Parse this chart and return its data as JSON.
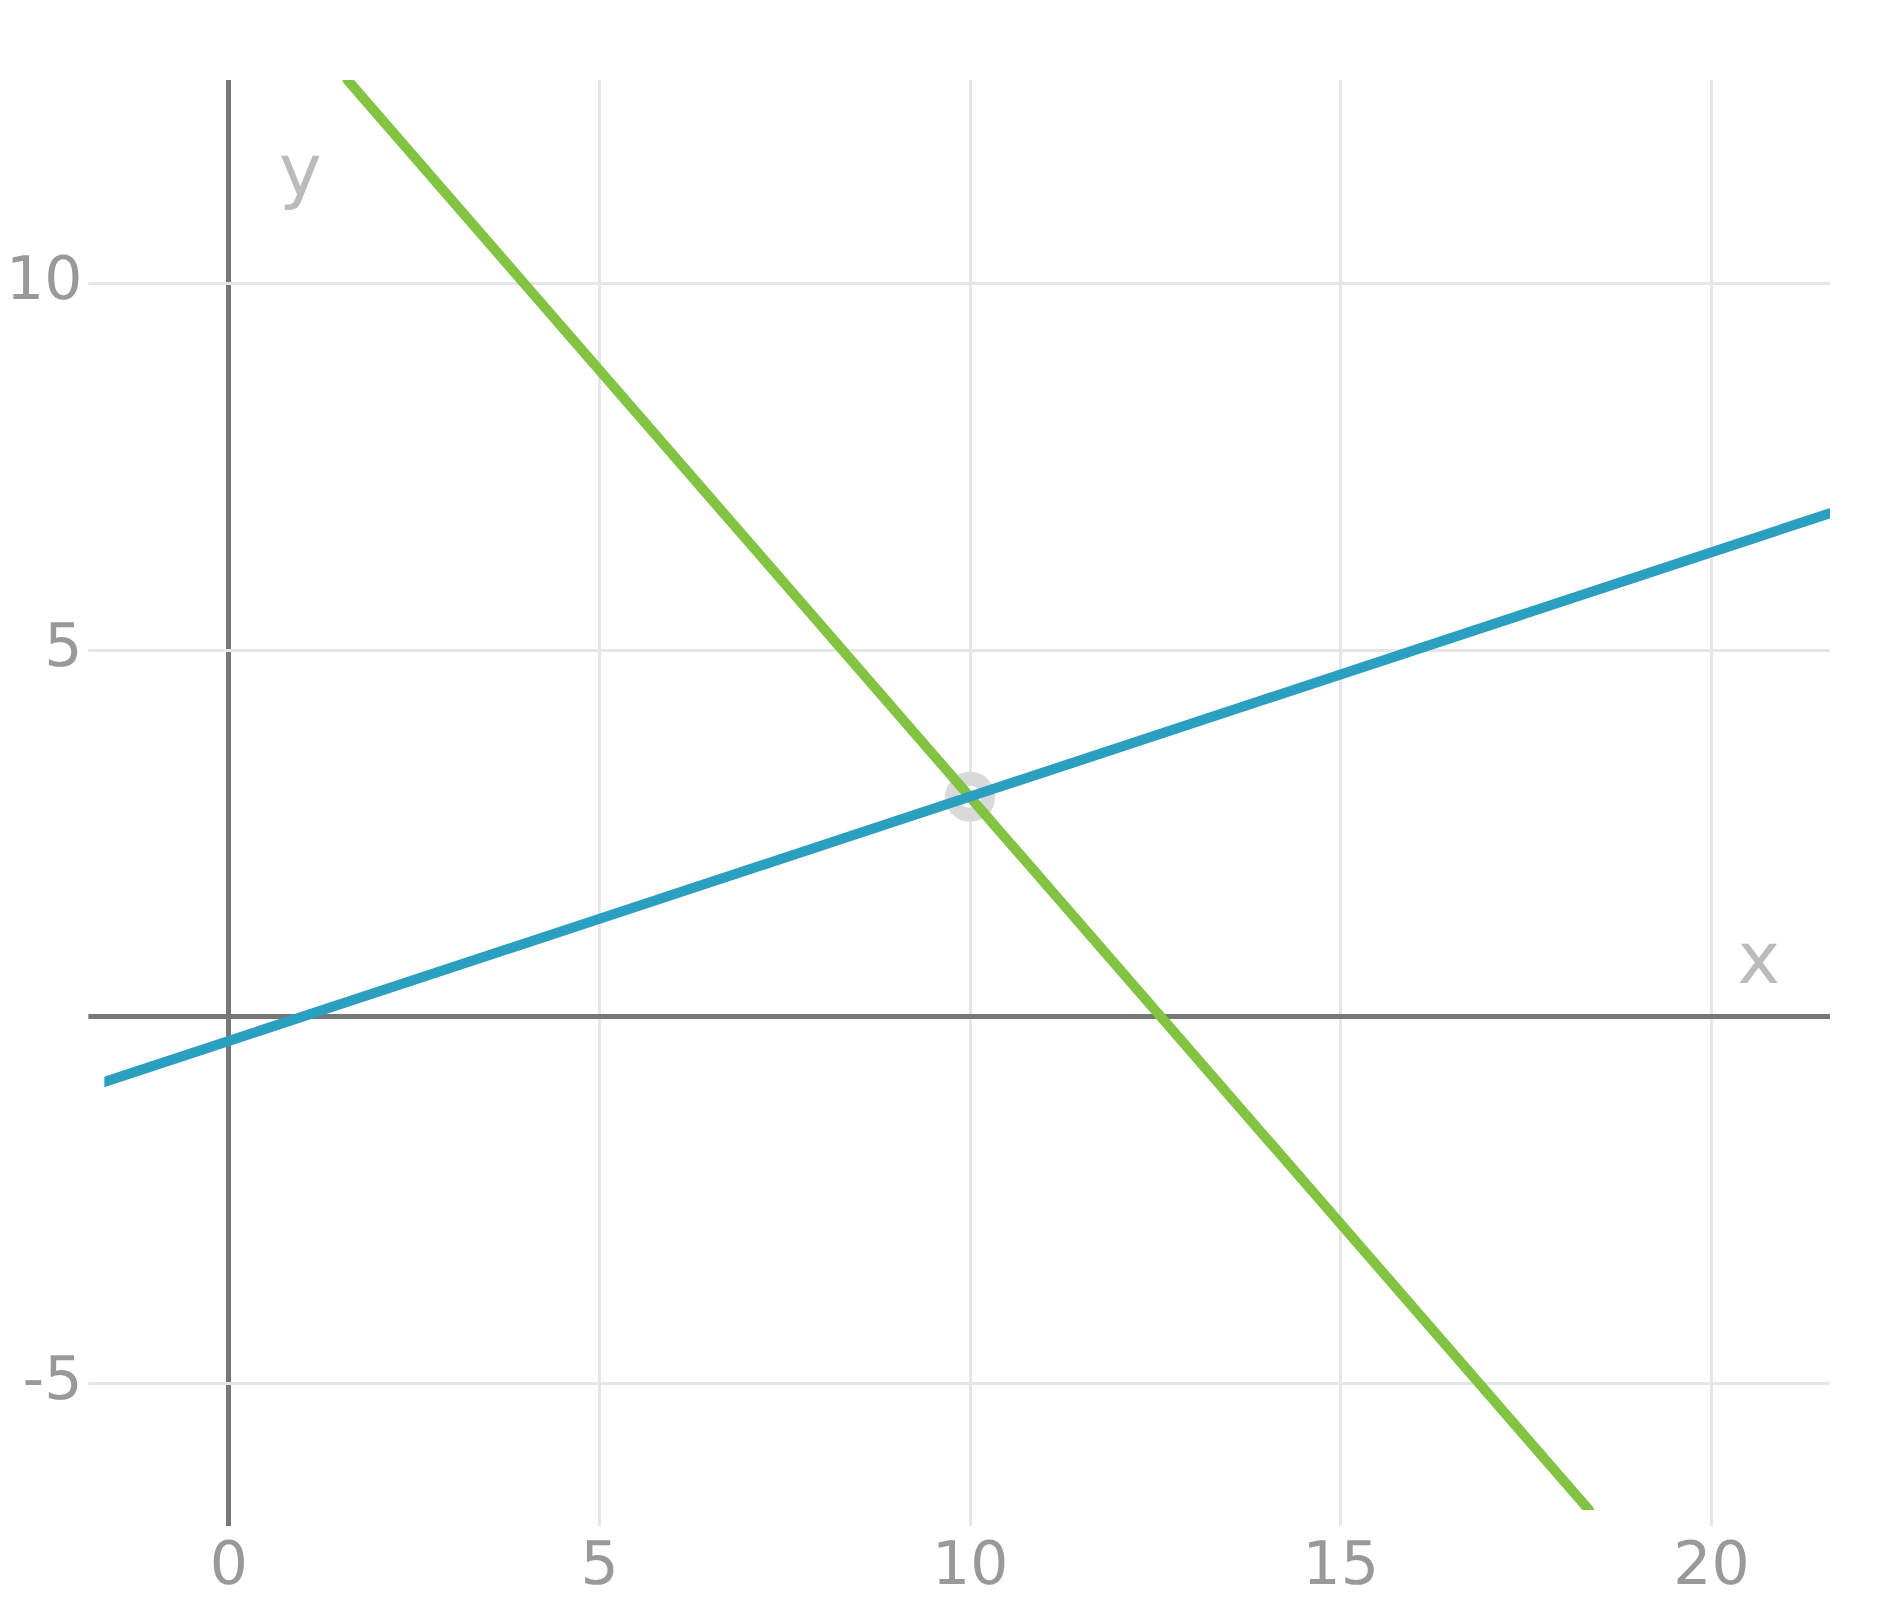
{
  "chart_data": {
    "type": "line",
    "xlabel": "x",
    "ylabel": "y",
    "xlim": [
      -1.68,
      21.6
    ],
    "ylim": [
      -6.73,
      12.78
    ],
    "xticks": [
      0,
      5,
      10,
      15,
      20
    ],
    "yticks": [
      -5,
      {
        "value": 0,
        "label": null
      },
      5,
      10
    ],
    "grid": true,
    "legend": false,
    "marker": "none",
    "line_style": "solid",
    "series": [
      {
        "color": "#2a9fbf",
        "x": [
          -1.68,
          21.6
        ],
        "values": [
          -0.89,
          6.87
        ]
      },
      {
        "color": "#82c341",
        "x": [
          1.6,
          18.35
        ],
        "values": [
          12.78,
          -6.73
        ]
      },
      {
        "type": "scatter",
        "color": "#d9d9d9",
        "marker": "circle",
        "x": [
          10
        ],
        "values": [
          3
        ]
      }
    ]
  }
}
